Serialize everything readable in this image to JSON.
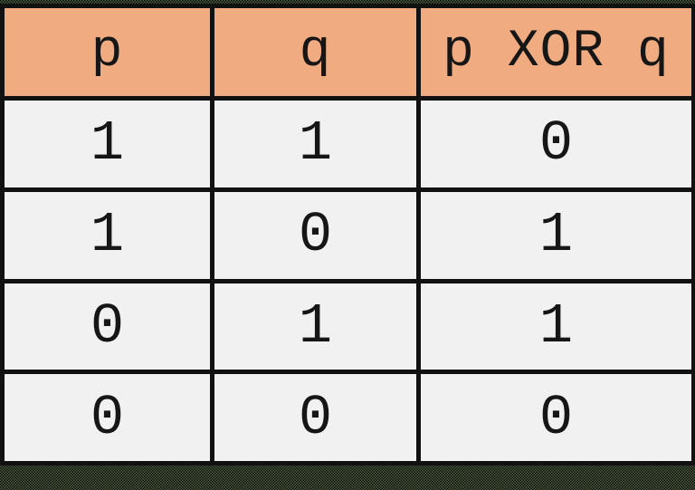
{
  "chart_data": {
    "type": "table",
    "columns": [
      "p",
      "q",
      "p XOR q"
    ],
    "rows": [
      [
        "1",
        "1",
        "0"
      ],
      [
        "1",
        "0",
        "1"
      ],
      [
        "0",
        "1",
        "1"
      ],
      [
        "0",
        "0",
        "0"
      ]
    ]
  },
  "colors": {
    "header_bg": "#f0ac80",
    "cell_bg": "#f1f1f1",
    "border": "#111111",
    "text": "#161616",
    "outer_background": "#2e3827"
  }
}
